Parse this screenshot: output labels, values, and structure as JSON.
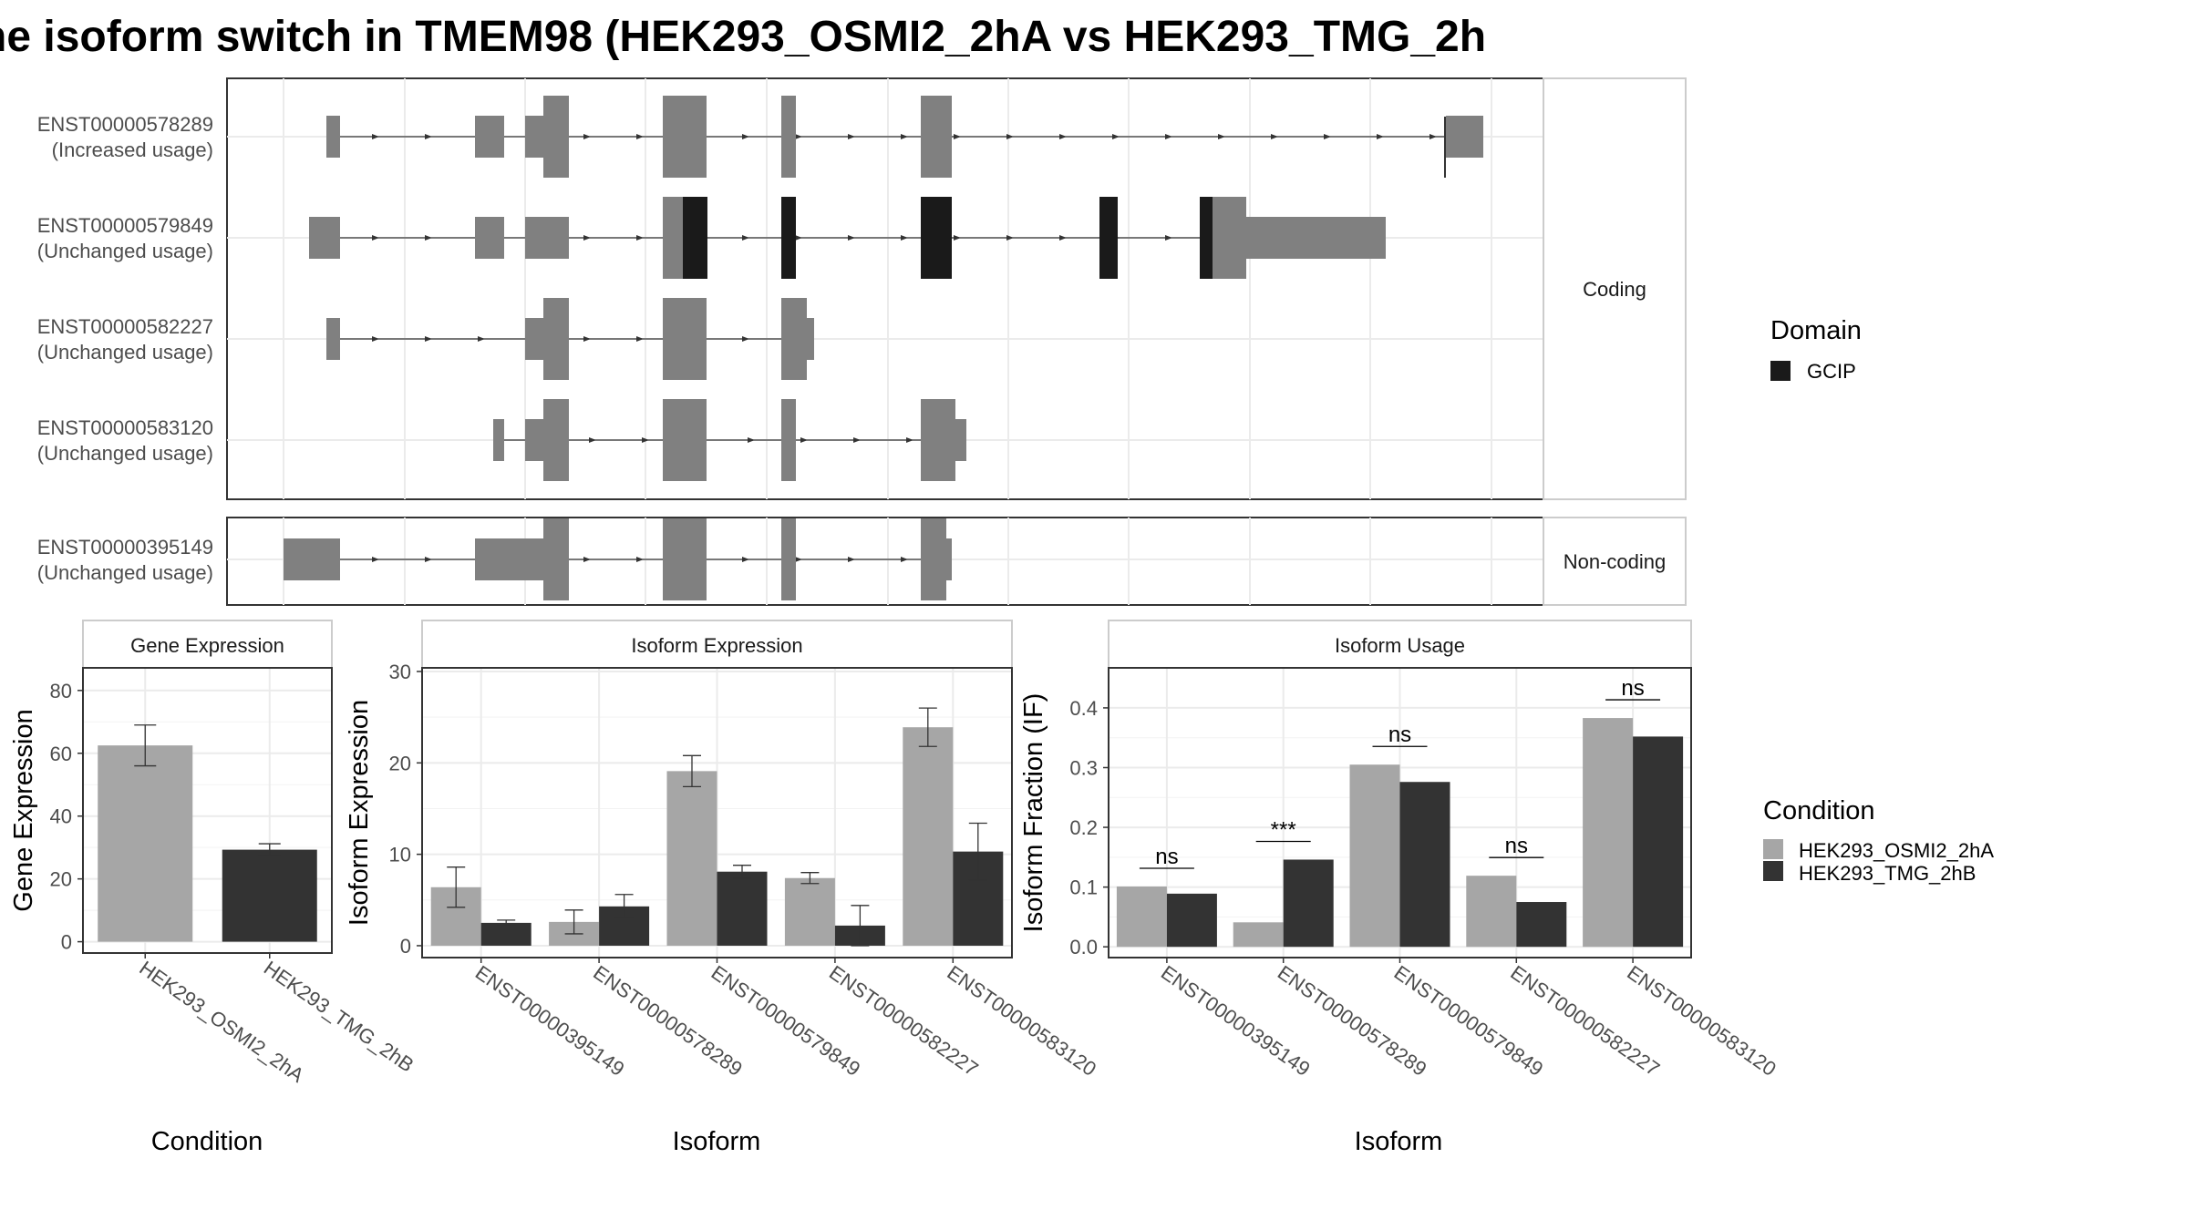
{
  "title": "he isoform switch in TMEM98 (HEK293_OSMI2_2hA vs HEK293_TMG_2h",
  "transcripts": [
    {
      "id": "ENST00000578289",
      "usage": "(Increased usage)",
      "group": "Coding"
    },
    {
      "id": "ENST00000579849",
      "usage": "(Unchanged usage)",
      "group": "Coding"
    },
    {
      "id": "ENST00000582227",
      "usage": "(Unchanged usage)",
      "group": "Coding"
    },
    {
      "id": "ENST00000583120",
      "usage": "(Unchanged usage)",
      "group": "Coding"
    },
    {
      "id": "ENST00000395149",
      "usage": "(Unchanged usage)",
      "group": "Non-coding"
    }
  ],
  "groups": [
    "Coding",
    "Non-coding"
  ],
  "domain_legend": {
    "title": "Domain",
    "items": [
      {
        "label": "GCIP",
        "color": "#1a1a1a"
      }
    ]
  },
  "condition_legend": {
    "title": "Condition",
    "items": [
      {
        "label": "HEK293_OSMI2_2hA",
        "color": "#a6a6a6"
      },
      {
        "label": "HEK293_TMG_2hB",
        "color": "#333333"
      }
    ]
  },
  "colors": {
    "exon": "#808080",
    "domain": "#1a1a1a",
    "cond_a": "#a6a6a6",
    "cond_b": "#333333",
    "grid": "#ebebeb",
    "frame": "#333333"
  },
  "chart_data": [
    {
      "type": "bar",
      "title": "Gene Expression",
      "xlabel": "Condition",
      "ylabel": "Gene Expression",
      "categories": [
        "HEK293_OSMI2_2hA",
        "HEK293_TMG_2hB"
      ],
      "values": [
        62.5,
        29.3
      ],
      "error_low": [
        56.0,
        27.5
      ],
      "error_high": [
        69.0,
        31.2
      ],
      "ylim": [
        -3.6,
        87.2
      ],
      "yticks": [
        0,
        20,
        40,
        60,
        80
      ]
    },
    {
      "type": "bar",
      "title": "Isoform Expression",
      "xlabel": "Isoform",
      "ylabel": "Isoform Expression",
      "categories": [
        "ENST00000395149",
        "ENST00000578289",
        "ENST00000579849",
        "ENST00000582227",
        "ENST00000583120"
      ],
      "series": [
        {
          "name": "HEK293_OSMI2_2hA",
          "values": [
            6.4,
            2.6,
            19.1,
            7.4,
            23.9
          ],
          "error_low": [
            4.2,
            1.3,
            17.4,
            6.8,
            21.8
          ],
          "error_high": [
            8.6,
            3.9,
            20.8,
            8.0,
            26.0
          ]
        },
        {
          "name": "HEK293_TMG_2hB",
          "values": [
            2.5,
            4.3,
            8.1,
            2.2,
            10.3
          ],
          "error_low": [
            2.2,
            3.0,
            7.4,
            0.0,
            7.2
          ],
          "error_high": [
            2.8,
            5.6,
            8.8,
            4.4,
            13.4
          ]
        }
      ],
      "ylim": [
        -1.3,
        30.4
      ],
      "yticks": [
        0,
        10,
        20,
        30
      ]
    },
    {
      "type": "bar",
      "title": "Isoform Usage",
      "xlabel": "Isoform",
      "ylabel": "Isoform Fraction (IF)",
      "categories": [
        "ENST00000395149",
        "ENST00000578289",
        "ENST00000579849",
        "ENST00000582227",
        "ENST00000583120"
      ],
      "series": [
        {
          "name": "HEK293_OSMI2_2hA",
          "values": [
            0.101,
            0.041,
            0.305,
            0.119,
            0.383
          ]
        },
        {
          "name": "HEK293_TMG_2hB",
          "values": [
            0.089,
            0.146,
            0.276,
            0.075,
            0.352
          ]
        }
      ],
      "significance": [
        "ns",
        "***",
        "ns",
        "ns",
        "ns"
      ],
      "ylim": [
        -0.018,
        0.467
      ],
      "yticks": [
        "0.0",
        "0.1",
        "0.2",
        "0.3",
        "0.4"
      ]
    }
  ]
}
